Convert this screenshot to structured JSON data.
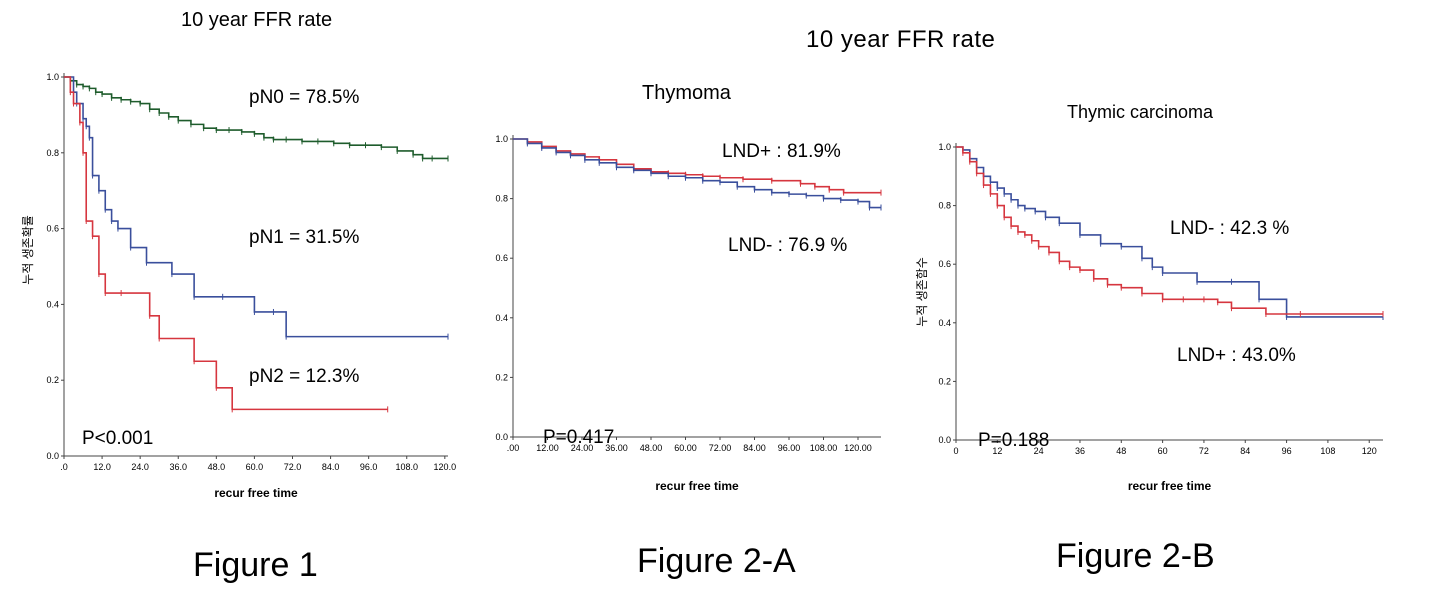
{
  "headers": {
    "fig1_title": "10 year FFR rate",
    "fig2_title": "10 year FFR rate",
    "fig2a_subtitle": "Thymoma",
    "fig2b_subtitle": "Thymic carcinoma"
  },
  "figure_labels": [
    "Figure 1",
    "Figure 2-A",
    "Figure 2-B"
  ],
  "chart_data": [
    {
      "type": "line",
      "step": true,
      "title": "10 year FFR rate",
      "xlabel": "recur free time",
      "ylabel": "누적 생존확률",
      "xlim": [
        0,
        121
      ],
      "ylim": [
        0,
        1.0
      ],
      "xticks": [
        ".0",
        "12.0",
        "24.0",
        "36.0",
        "48.0",
        "60.0",
        "72.0",
        "84.0",
        "96.0",
        "108.0",
        "120.0"
      ],
      "yticks": [
        "0.0",
        "0.2",
        "0.4",
        "0.6",
        "0.8",
        "1.0"
      ],
      "annotations": [
        "pN0  =  78.5%",
        "pN1  =  31.5%",
        "pN2  =  12.3%",
        "P<0.001"
      ],
      "series": [
        {
          "name": "pN0",
          "color": "#1e5c2c",
          "x": [
            0,
            2,
            4,
            6,
            8,
            10,
            12,
            15,
            18,
            21,
            24,
            27,
            30,
            33,
            36,
            40,
            44,
            48,
            52,
            56,
            60,
            63,
            66,
            70,
            75,
            80,
            85,
            90,
            95,
            100,
            105,
            110,
            113,
            116,
            121
          ],
          "y": [
            1.0,
            0.99,
            0.98,
            0.975,
            0.97,
            0.96,
            0.955,
            0.945,
            0.94,
            0.935,
            0.93,
            0.915,
            0.905,
            0.895,
            0.885,
            0.875,
            0.865,
            0.86,
            0.86,
            0.855,
            0.85,
            0.84,
            0.835,
            0.835,
            0.83,
            0.83,
            0.825,
            0.82,
            0.82,
            0.815,
            0.805,
            0.795,
            0.785,
            0.785,
            0.785
          ]
        },
        {
          "name": "pN1",
          "color": "#3a4f9c",
          "x": [
            0,
            3,
            4,
            6,
            7,
            8,
            9,
            11,
            13,
            15,
            17,
            21,
            26,
            34,
            41,
            50,
            60,
            66,
            70,
            121
          ],
          "y": [
            1.0,
            0.96,
            0.93,
            0.89,
            0.87,
            0.84,
            0.74,
            0.7,
            0.65,
            0.62,
            0.6,
            0.55,
            0.51,
            0.48,
            0.42,
            0.42,
            0.38,
            0.38,
            0.315,
            0.315
          ]
        },
        {
          "name": "pN2",
          "color": "#d6363f",
          "x": [
            0,
            2,
            3,
            5,
            6,
            7,
            9,
            11,
            13,
            18,
            27,
            30,
            41,
            48,
            53,
            102
          ],
          "y": [
            1.0,
            0.96,
            0.93,
            0.88,
            0.8,
            0.62,
            0.58,
            0.48,
            0.43,
            0.43,
            0.37,
            0.31,
            0.25,
            0.18,
            0.123,
            0.123
          ]
        }
      ]
    },
    {
      "type": "line",
      "step": true,
      "title": "Thymoma",
      "xlabel": "recur free time",
      "ylabel": "",
      "xlim": [
        0,
        128
      ],
      "ylim": [
        0,
        1.0
      ],
      "xticks": [
        ".00",
        "12.00",
        "24.00",
        "36.00",
        "48.00",
        "60.00",
        "72.00",
        "84.00",
        "96.00",
        "108.00",
        "120.00"
      ],
      "yticks": [
        "0.0",
        "0.2",
        "0.4",
        "0.6",
        "0.8",
        "1.0"
      ],
      "annotations": [
        "LND+ : 81.9%",
        "LND-  : 76.9 %",
        "P=0.417"
      ],
      "series": [
        {
          "name": "LND+",
          "color": "#d6363f",
          "x": [
            0,
            5,
            10,
            15,
            20,
            25,
            30,
            36,
            42,
            48,
            54,
            60,
            66,
            72,
            80,
            90,
            100,
            105,
            110,
            115,
            128
          ],
          "y": [
            1.0,
            0.99,
            0.975,
            0.96,
            0.95,
            0.94,
            0.93,
            0.915,
            0.9,
            0.89,
            0.885,
            0.88,
            0.875,
            0.87,
            0.865,
            0.86,
            0.85,
            0.84,
            0.83,
            0.82,
            0.82
          ]
        },
        {
          "name": "LND-",
          "color": "#3a4f9c",
          "x": [
            0,
            5,
            10,
            15,
            20,
            25,
            30,
            36,
            42,
            48,
            54,
            60,
            66,
            72,
            78,
            84,
            90,
            96,
            102,
            108,
            114,
            120,
            124,
            128
          ],
          "y": [
            1.0,
            0.985,
            0.97,
            0.955,
            0.945,
            0.93,
            0.92,
            0.905,
            0.895,
            0.885,
            0.875,
            0.87,
            0.86,
            0.855,
            0.84,
            0.83,
            0.82,
            0.815,
            0.81,
            0.8,
            0.795,
            0.79,
            0.77,
            0.77
          ]
        }
      ]
    },
    {
      "type": "line",
      "step": true,
      "title": "Thymic carcinoma",
      "xlabel": "recur free time",
      "ylabel": "누적 생존함수",
      "xlim": [
        0,
        124
      ],
      "ylim": [
        0,
        1.0
      ],
      "xticks": [
        "0",
        "12",
        "24",
        "36",
        "48",
        "60",
        "72",
        "84",
        "96",
        "108",
        "120"
      ],
      "yticks": [
        "0.0",
        "0.2",
        "0.4",
        "0.6",
        "0.8",
        "1.0"
      ],
      "annotations": [
        "LND-  : 42.3 %",
        "LND+ : 43.0%",
        "P=0.188"
      ],
      "series": [
        {
          "name": "LND-",
          "color": "#3a4f9c",
          "x": [
            0,
            2,
            4,
            6,
            8,
            10,
            12,
            14,
            16,
            18,
            20,
            23,
            26,
            30,
            36,
            42,
            48,
            54,
            57,
            60,
            70,
            80,
            88,
            96,
            124
          ],
          "y": [
            1.0,
            0.99,
            0.96,
            0.93,
            0.9,
            0.88,
            0.86,
            0.84,
            0.82,
            0.8,
            0.79,
            0.78,
            0.76,
            0.74,
            0.7,
            0.67,
            0.66,
            0.62,
            0.59,
            0.57,
            0.54,
            0.54,
            0.48,
            0.42,
            0.42
          ]
        },
        {
          "name": "LND+",
          "color": "#d6363f",
          "x": [
            0,
            2,
            4,
            6,
            8,
            10,
            12,
            14,
            16,
            18,
            20,
            22,
            24,
            27,
            30,
            33,
            36,
            40,
            44,
            48,
            54,
            60,
            66,
            72,
            76,
            80,
            90,
            100,
            124
          ],
          "y": [
            1.0,
            0.98,
            0.95,
            0.91,
            0.87,
            0.84,
            0.8,
            0.76,
            0.73,
            0.71,
            0.7,
            0.68,
            0.66,
            0.64,
            0.61,
            0.59,
            0.58,
            0.55,
            0.53,
            0.52,
            0.5,
            0.48,
            0.48,
            0.48,
            0.47,
            0.45,
            0.43,
            0.43,
            0.43
          ]
        }
      ]
    }
  ]
}
